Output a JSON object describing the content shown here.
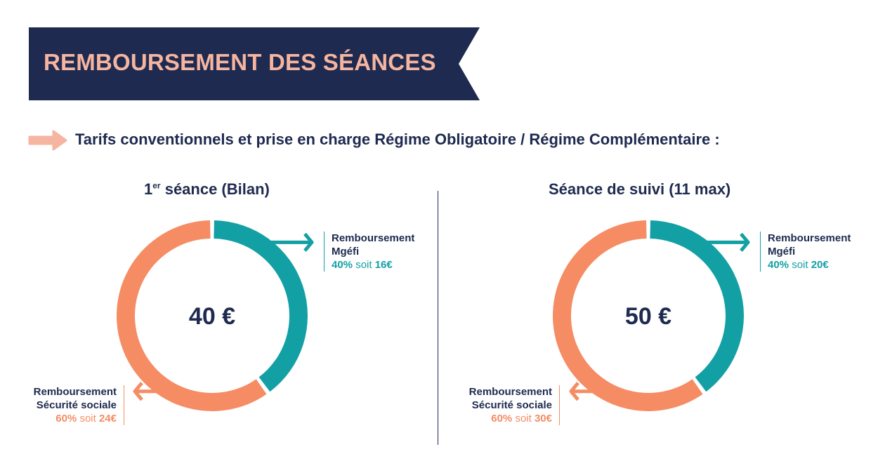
{
  "header": {
    "title": "REMBOURSEMENT DES SÉANCES"
  },
  "subtitle": "Tarifs conventionnels et prise en charge Régime Obligatoire / Régime Complémentaire :",
  "colors": {
    "navy": "#1e2a4f",
    "peach": "#f5b5a0",
    "teal": "#13a0a4",
    "orange": "#f58c64"
  },
  "chart_data": [
    {
      "type": "pie",
      "title_main": "1",
      "title_sup": "er",
      "title_rest": " séance (Bilan)",
      "total_label": "40 €",
      "slices": [
        {
          "label_line1": "Remboursement",
          "label_line2": "Mgéfi",
          "percent": 40,
          "percent_label": "40%",
          "soit": "soit",
          "amount_label": "16€",
          "color": "#13a0a4"
        },
        {
          "label_line1": "Remboursement",
          "label_line2": "Sécurité sociale",
          "percent": 60,
          "percent_label": "60%",
          "soit": "soit",
          "amount_label": "24€",
          "color": "#f58c64"
        }
      ]
    },
    {
      "type": "pie",
      "title_main": "Séance de suivi (11 max)",
      "title_sup": "",
      "title_rest": "",
      "total_label": "50 €",
      "slices": [
        {
          "label_line1": "Remboursement",
          "label_line2": "Mgéfi",
          "percent": 40,
          "percent_label": "40%",
          "soit": "soit",
          "amount_label": "20€",
          "color": "#13a0a4"
        },
        {
          "label_line1": "Remboursement",
          "label_line2": "Sécurité sociale",
          "percent": 60,
          "percent_label": "60%",
          "soit": "soit",
          "amount_label": "30€",
          "color": "#f58c64"
        }
      ]
    }
  ]
}
